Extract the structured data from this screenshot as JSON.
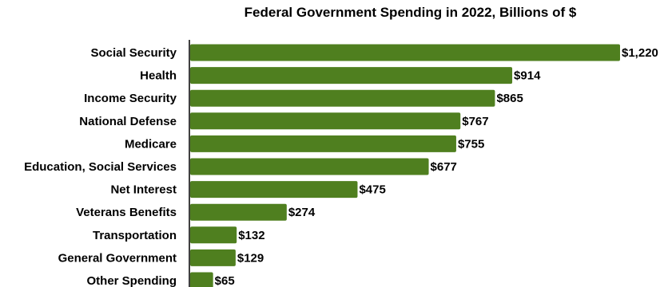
{
  "chart_data": {
    "type": "bar",
    "orientation": "horizontal",
    "title": "Federal Government Spending in 2022, Billions of $",
    "xlabel": "",
    "ylabel": "",
    "categories": [
      "Social Security",
      "Health",
      "Income Security",
      "National Defense",
      "Medicare",
      "Education, Social Services",
      "Net Interest",
      "Veterans Benefits",
      "Transportation",
      "General Government",
      "Other Spending"
    ],
    "values": [
      1220,
      914,
      865,
      767,
      755,
      677,
      475,
      274,
      132,
      129,
      65
    ],
    "value_labels": [
      "$1,220",
      "$914",
      "$865",
      "$767",
      "$755",
      "$677",
      "$475",
      "$274",
      "$132",
      "$129",
      "$65"
    ],
    "xlim": [
      0,
      1220
    ],
    "bar_color": "#4f7f1f",
    "axis_color": "#000000",
    "grid": false,
    "legend": "none"
  }
}
